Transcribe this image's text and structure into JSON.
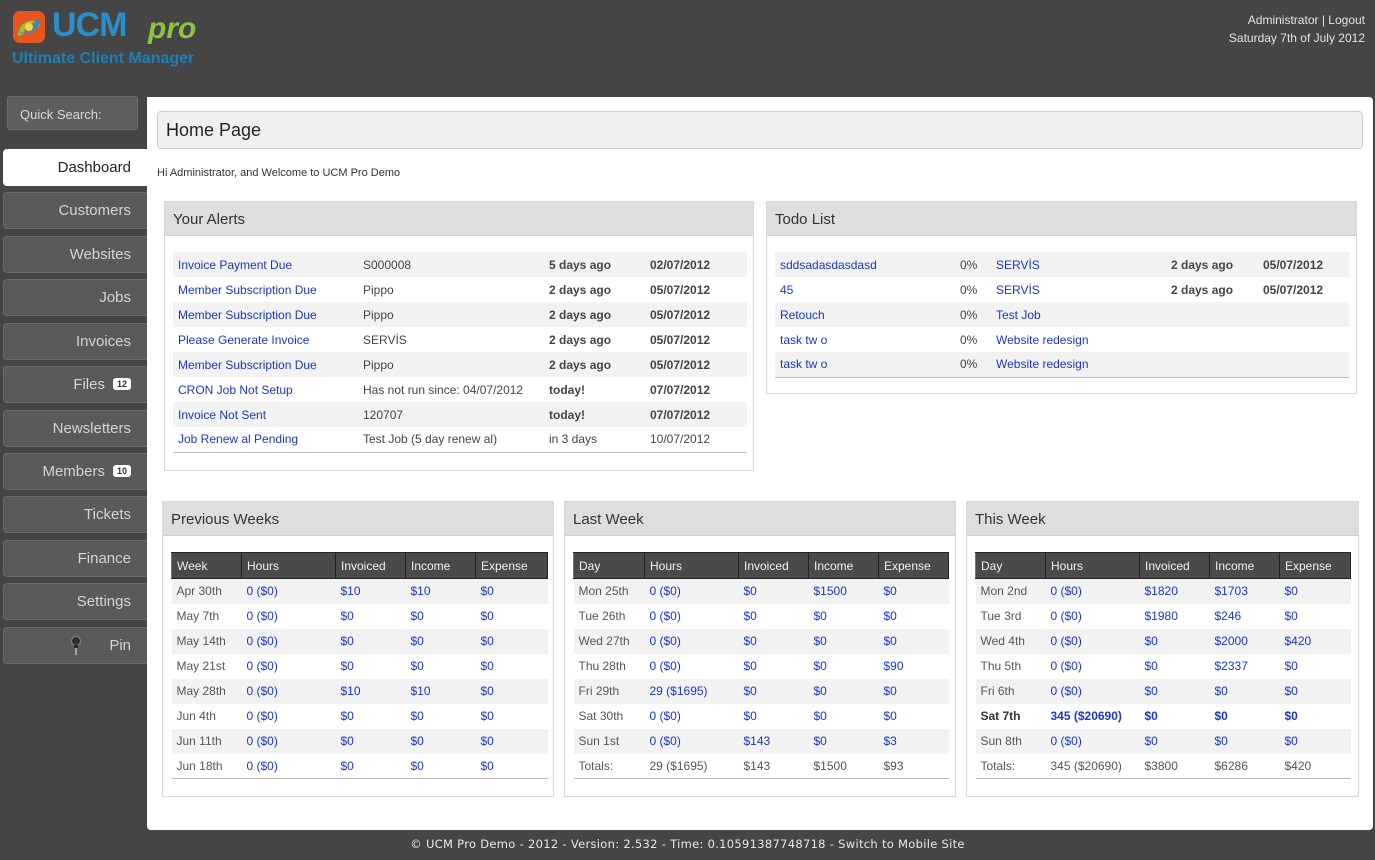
{
  "logo": {
    "ucm": "UCM",
    "pro": "pro",
    "tagline": "Ultimate Client Manager"
  },
  "header": {
    "user": "Administrator",
    "separator": "|",
    "logout": "Logout",
    "date": "Saturday 7th of July 2012"
  },
  "quick_search": {
    "placeholder": "Quick Search:"
  },
  "nav": [
    {
      "label": "Dashboard"
    },
    {
      "label": "Customers"
    },
    {
      "label": "Websites"
    },
    {
      "label": "Jobs"
    },
    {
      "label": "Invoices"
    },
    {
      "label": "Files",
      "badge": "12"
    },
    {
      "label": "Newsletters"
    },
    {
      "label": "Members",
      "badge": "10"
    },
    {
      "label": "Tickets"
    },
    {
      "label": "Finance"
    },
    {
      "label": "Settings"
    },
    {
      "label": "Pin",
      "icon": "pin-icon"
    }
  ],
  "page": {
    "title": "Home Page",
    "welcome": "Hi Administrator, and Welcome to UCM Pro Demo"
  },
  "alerts": {
    "title": "Your Alerts",
    "rows": [
      [
        "Invoice Payment Due",
        "S000008",
        "5 days ago",
        "02/07/2012"
      ],
      [
        "Member Subscription Due",
        "Pippo",
        "2 days ago",
        "05/07/2012"
      ],
      [
        "Member Subscription Due",
        "Pippo",
        "2 days ago",
        "05/07/2012"
      ],
      [
        "Please Generate Invoice",
        "SERVİS",
        "2 days ago",
        "05/07/2012"
      ],
      [
        "Member Subscription Due",
        "Pippo",
        "2 days ago",
        "05/07/2012"
      ],
      [
        "CRON Job Not Setup",
        "Has not run since: 04/07/2012",
        "today!",
        "07/07/2012"
      ],
      [
        "Invoice Not Sent",
        "120707",
        "today!",
        "07/07/2012"
      ],
      [
        "Job Renew al Pending",
        "Test Job (5 day renew al)",
        "in 3 days",
        "10/07/2012"
      ]
    ]
  },
  "todo": {
    "title": "Todo List",
    "rows": [
      [
        "sddsadasdasdasd",
        "0%",
        "SERVİS",
        "2 days ago",
        "05/07/2012"
      ],
      [
        "45",
        "0%",
        "SERVİS",
        "2 days ago",
        "05/07/2012"
      ],
      [
        "Retouch",
        "0%",
        "Test Job",
        "",
        ""
      ],
      [
        "task tw o",
        "0%",
        "Website redesign",
        "",
        ""
      ],
      [
        "task tw o",
        "0%",
        "Website redesign",
        "",
        ""
      ]
    ]
  },
  "previous_weeks": {
    "title": "Previous Weeks",
    "headers": [
      "Week",
      "Hours",
      "Invoiced",
      "Income",
      "Expense"
    ],
    "rows": [
      [
        "Apr 30th",
        "0 ($0)",
        "$10",
        "$10",
        "$0"
      ],
      [
        "May 7th",
        "0 ($0)",
        "$0",
        "$0",
        "$0"
      ],
      [
        "May 14th",
        "0 ($0)",
        "$0",
        "$0",
        "$0"
      ],
      [
        "May 21st",
        "0 ($0)",
        "$0",
        "$0",
        "$0"
      ],
      [
        "May 28th",
        "0 ($0)",
        "$10",
        "$10",
        "$0"
      ],
      [
        "Jun 4th",
        "0 ($0)",
        "$0",
        "$0",
        "$0"
      ],
      [
        "Jun 11th",
        "0 ($0)",
        "$0",
        "$0",
        "$0"
      ],
      [
        "Jun 18th",
        "0 ($0)",
        "$0",
        "$0",
        "$0"
      ]
    ]
  },
  "last_week": {
    "title": "Last Week",
    "headers": [
      "Day",
      "Hours",
      "Invoiced",
      "Income",
      "Expense"
    ],
    "rows": [
      [
        "Mon 25th",
        "0 ($0)",
        "$0",
        "$1500",
        "$0"
      ],
      [
        "Tue 26th",
        "0 ($0)",
        "$0",
        "$0",
        "$0"
      ],
      [
        "Wed 27th",
        "0 ($0)",
        "$0",
        "$0",
        "$0"
      ],
      [
        "Thu 28th",
        "0 ($0)",
        "$0",
        "$0",
        "$90"
      ],
      [
        "Fri 29th",
        "29 ($1695)",
        "$0",
        "$0",
        "$0"
      ],
      [
        "Sat 30th",
        "0 ($0)",
        "$0",
        "$0",
        "$0"
      ],
      [
        "Sun 1st",
        "0 ($0)",
        "$143",
        "$0",
        "$3"
      ]
    ],
    "totals": [
      "Totals:",
      "29 ($1695)",
      "$143",
      "$1500",
      "$93"
    ]
  },
  "this_week": {
    "title": "This Week",
    "headers": [
      "Day",
      "Hours",
      "Invoiced",
      "Income",
      "Expense"
    ],
    "rows": [
      [
        "Mon 2nd",
        "0 ($0)",
        "$1820",
        "$1703",
        "$0"
      ],
      [
        "Tue 3rd",
        "0 ($0)",
        "$1980",
        "$246",
        "$0"
      ],
      [
        "Wed 4th",
        "0 ($0)",
        "$0",
        "$2000",
        "$420"
      ],
      [
        "Thu 5th",
        "0 ($0)",
        "$0",
        "$2337",
        "$0"
      ],
      [
        "Fri 6th",
        "0 ($0)",
        "$0",
        "$0",
        "$0"
      ],
      [
        "Sat 7th",
        "345 ($20690)",
        "$0",
        "$0",
        "$0"
      ],
      [
        "Sun 8th",
        "0 ($0)",
        "$0",
        "$0",
        "$0"
      ]
    ],
    "totals": [
      "Totals:",
      "345 ($20690)",
      "$3800",
      "$6286",
      "$420"
    ],
    "highlight_row": "Sat 7th"
  },
  "footer": {
    "text": "© UCM Pro Demo - 2012 - Version: 2.532 - Time: 0.10591387748718 - ",
    "mobile_link": "Switch to Mobile Site"
  }
}
